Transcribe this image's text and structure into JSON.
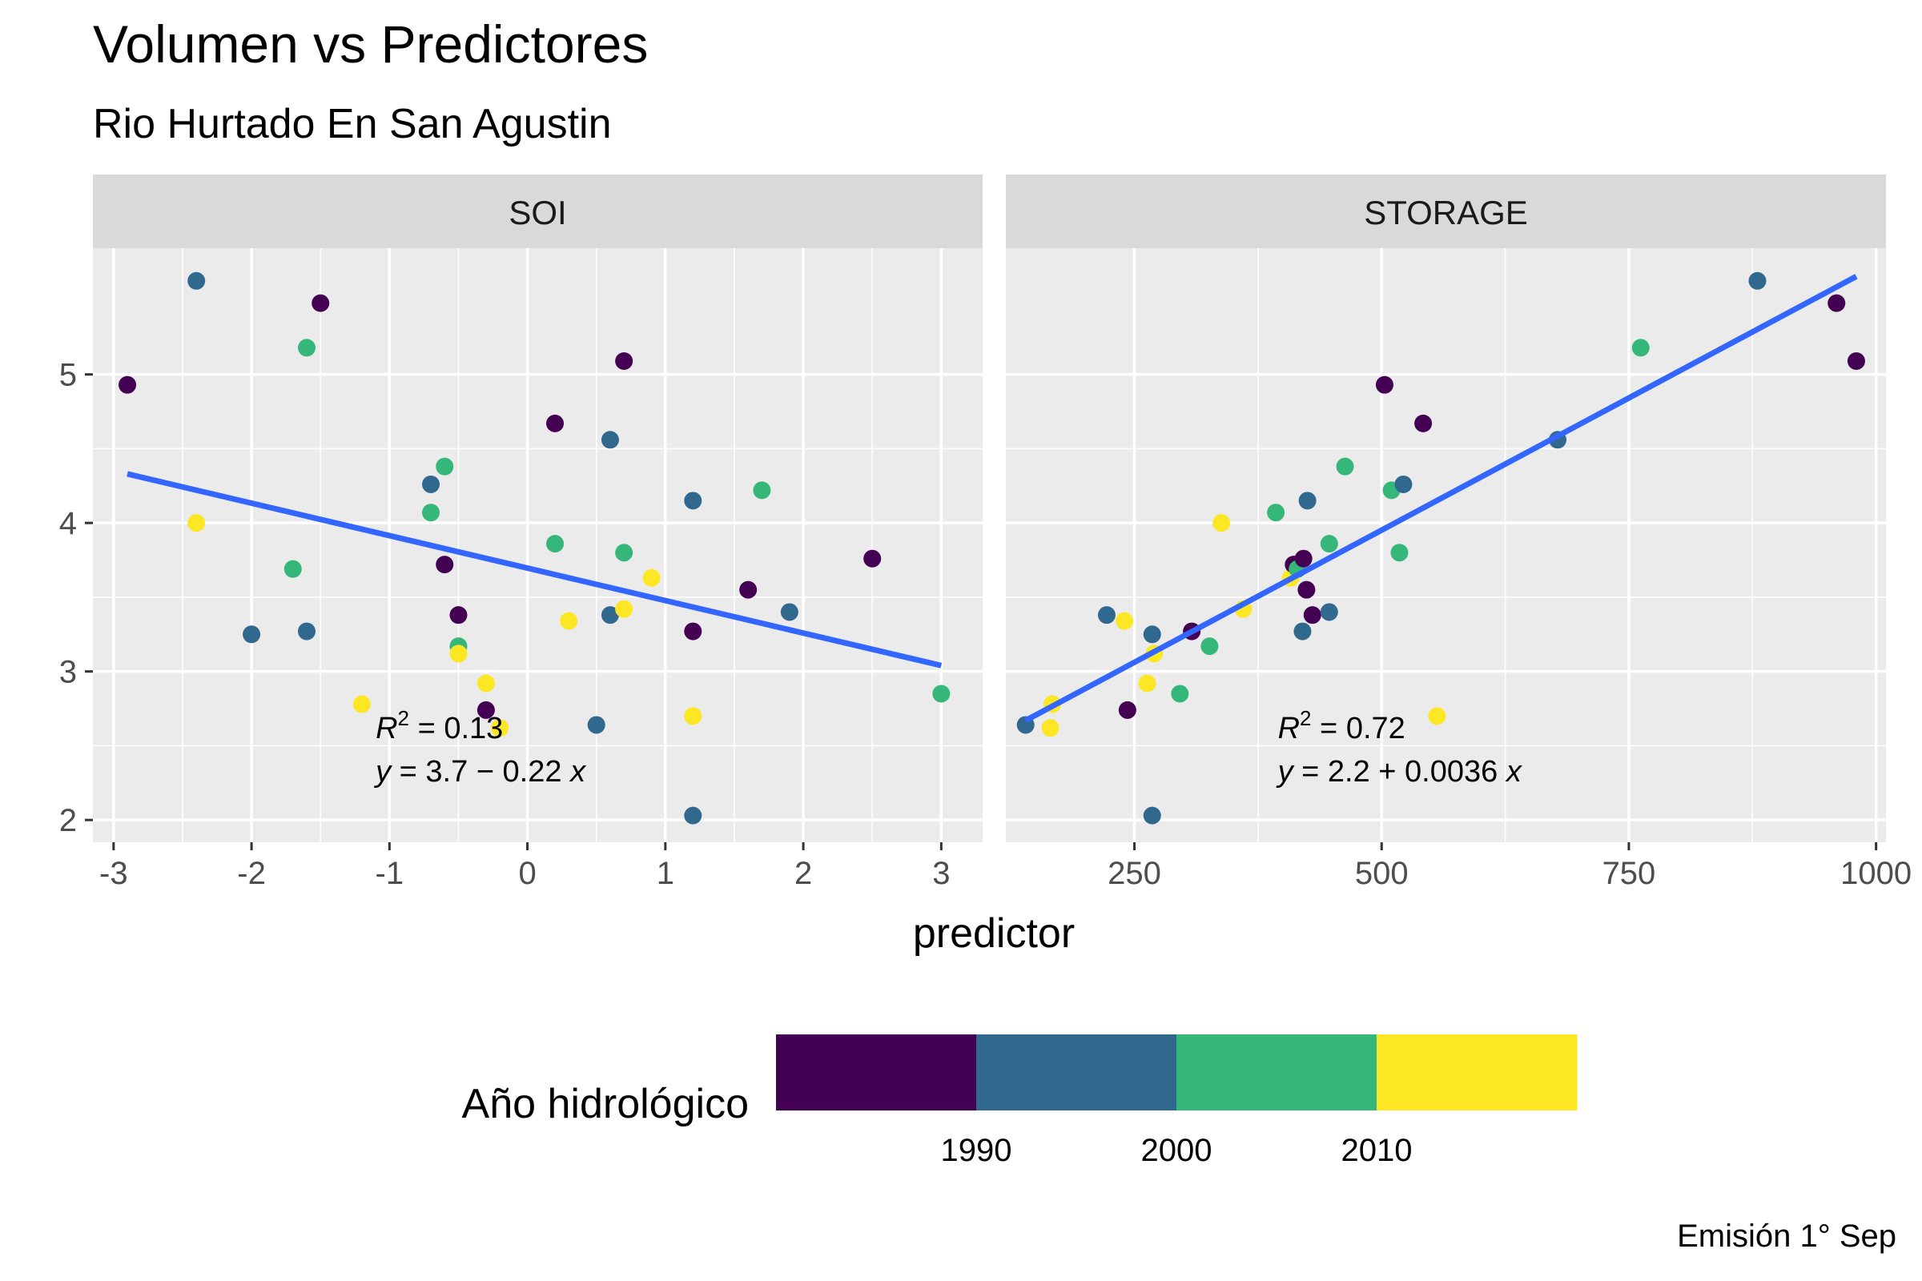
{
  "chart_data": {
    "type": "scatter",
    "title": "Volumen vs Predictores",
    "subtitle": "Rio Hurtado En San Agustin",
    "xlabel": "predictor",
    "ylabel": "",
    "caption": "Emisión 1° Sep",
    "legend": {
      "title": "Año hidrológico",
      "position": "bottom",
      "ticks": [
        "1990",
        "2000",
        "2010"
      ],
      "bins": [
        {
          "label": "<1990",
          "color": "#440154"
        },
        {
          "label": "1990-2000",
          "color": "#31688E"
        },
        {
          "label": "2000-2010",
          "color": "#35B779"
        },
        {
          "label": ">2010",
          "color": "#FDE725"
        }
      ]
    },
    "line_color": "#3366FF",
    "panel_bg": "#EBEBEB",
    "strip_bg": "#D9D9D9",
    "ylim": [
      1.85,
      5.85
    ],
    "yticks": [
      2,
      3,
      4,
      5
    ],
    "panels": [
      {
        "strip": "SOI",
        "xlim": [
          -3.15,
          3.3
        ],
        "xticks": [
          -3,
          -2,
          -1,
          0,
          1,
          2,
          3
        ],
        "xtick_labels": [
          "-3",
          "-2",
          "-1",
          "0",
          "1",
          "2",
          "3"
        ],
        "fit": {
          "x": [
            -2.9,
            3.0
          ],
          "y": [
            4.33,
            3.04
          ]
        },
        "r2_text": "0.13",
        "eq_text": "3.7 − 0.22",
        "eq_at": {
          "x": -1.1,
          "y": 2.55
        },
        "points": [
          {
            "x": -2.9,
            "y": 4.93,
            "c": 0
          },
          {
            "x": -2.4,
            "y": 5.63,
            "c": 1
          },
          {
            "x": -2.4,
            "y": 4.0,
            "c": 3
          },
          {
            "x": -2.0,
            "y": 3.25,
            "c": 1
          },
          {
            "x": -1.7,
            "y": 3.69,
            "c": 2
          },
          {
            "x": -1.6,
            "y": 5.18,
            "c": 2
          },
          {
            "x": -1.6,
            "y": 3.27,
            "c": 1
          },
          {
            "x": -1.5,
            "y": 5.48,
            "c": 0
          },
          {
            "x": -1.2,
            "y": 2.78,
            "c": 3
          },
          {
            "x": -0.7,
            "y": 4.26,
            "c": 1
          },
          {
            "x": -0.7,
            "y": 4.07,
            "c": 2
          },
          {
            "x": -0.6,
            "y": 4.38,
            "c": 2
          },
          {
            "x": -0.6,
            "y": 3.72,
            "c": 0
          },
          {
            "x": -0.5,
            "y": 3.38,
            "c": 0
          },
          {
            "x": -0.5,
            "y": 3.17,
            "c": 2
          },
          {
            "x": -0.5,
            "y": 3.12,
            "c": 3
          },
          {
            "x": -0.3,
            "y": 2.92,
            "c": 3
          },
          {
            "x": -0.3,
            "y": 2.74,
            "c": 0
          },
          {
            "x": -0.2,
            "y": 2.62,
            "c": 3
          },
          {
            "x": 0.2,
            "y": 4.67,
            "c": 0
          },
          {
            "x": 0.2,
            "y": 3.86,
            "c": 2
          },
          {
            "x": 0.3,
            "y": 3.34,
            "c": 3
          },
          {
            "x": 0.5,
            "y": 2.64,
            "c": 1
          },
          {
            "x": 0.6,
            "y": 4.56,
            "c": 1
          },
          {
            "x": 0.6,
            "y": 3.38,
            "c": 1
          },
          {
            "x": 0.7,
            "y": 5.09,
            "c": 0
          },
          {
            "x": 0.7,
            "y": 3.8,
            "c": 2
          },
          {
            "x": 0.7,
            "y": 3.42,
            "c": 3
          },
          {
            "x": 0.9,
            "y": 3.63,
            "c": 3
          },
          {
            "x": 1.2,
            "y": 4.15,
            "c": 1
          },
          {
            "x": 1.2,
            "y": 3.27,
            "c": 0
          },
          {
            "x": 1.2,
            "y": 2.7,
            "c": 3
          },
          {
            "x": 1.2,
            "y": 2.03,
            "c": 1
          },
          {
            "x": 1.6,
            "y": 3.55,
            "c": 0
          },
          {
            "x": 1.7,
            "y": 4.22,
            "c": 2
          },
          {
            "x": 1.9,
            "y": 3.4,
            "c": 1
          },
          {
            "x": 2.5,
            "y": 3.76,
            "c": 0
          },
          {
            "x": 3.0,
            "y": 2.85,
            "c": 2
          }
        ]
      },
      {
        "strip": "STORAGE",
        "xlim": [
          120,
          1010
        ],
        "xticks": [
          250,
          500,
          750,
          1000
        ],
        "xtick_labels": [
          "250",
          "500",
          "750",
          "1000"
        ],
        "fit": {
          "x": [
            140,
            980
          ],
          "y": [
            2.67,
            5.66
          ]
        },
        "r2_text": "0.72",
        "eq_text": "2.2 + 0.0036",
        "eq_at": {
          "x": 395,
          "y": 2.55
        },
        "points": [
          {
            "x": 140,
            "y": 2.64,
            "c": 1
          },
          {
            "x": 167,
            "y": 2.78,
            "c": 3
          },
          {
            "x": 165,
            "y": 2.62,
            "c": 3
          },
          {
            "x": 222,
            "y": 3.38,
            "c": 1
          },
          {
            "x": 240,
            "y": 3.34,
            "c": 3
          },
          {
            "x": 243,
            "y": 2.74,
            "c": 0
          },
          {
            "x": 263,
            "y": 2.92,
            "c": 3
          },
          {
            "x": 268,
            "y": 3.25,
            "c": 1
          },
          {
            "x": 270,
            "y": 3.12,
            "c": 3
          },
          {
            "x": 268,
            "y": 2.03,
            "c": 1
          },
          {
            "x": 296,
            "y": 2.85,
            "c": 2
          },
          {
            "x": 308,
            "y": 3.27,
            "c": 0
          },
          {
            "x": 326,
            "y": 3.17,
            "c": 2
          },
          {
            "x": 338,
            "y": 4.0,
            "c": 3
          },
          {
            "x": 360,
            "y": 3.42,
            "c": 3
          },
          {
            "x": 393,
            "y": 4.07,
            "c": 2
          },
          {
            "x": 408,
            "y": 3.63,
            "c": 3
          },
          {
            "x": 411,
            "y": 3.72,
            "c": 0
          },
          {
            "x": 415,
            "y": 3.69,
            "c": 2
          },
          {
            "x": 421,
            "y": 3.76,
            "c": 0
          },
          {
            "x": 420,
            "y": 3.27,
            "c": 1
          },
          {
            "x": 424,
            "y": 3.55,
            "c": 0
          },
          {
            "x": 425,
            "y": 4.15,
            "c": 1
          },
          {
            "x": 430,
            "y": 3.38,
            "c": 0
          },
          {
            "x": 447,
            "y": 3.86,
            "c": 2
          },
          {
            "x": 447,
            "y": 3.4,
            "c": 1
          },
          {
            "x": 463,
            "y": 4.38,
            "c": 2
          },
          {
            "x": 503,
            "y": 4.93,
            "c": 0
          },
          {
            "x": 510,
            "y": 4.22,
            "c": 2
          },
          {
            "x": 518,
            "y": 3.8,
            "c": 2
          },
          {
            "x": 522,
            "y": 4.26,
            "c": 1
          },
          {
            "x": 542,
            "y": 4.67,
            "c": 0
          },
          {
            "x": 556,
            "y": 2.7,
            "c": 3
          },
          {
            "x": 678,
            "y": 4.56,
            "c": 1
          },
          {
            "x": 762,
            "y": 5.18,
            "c": 2
          },
          {
            "x": 880,
            "y": 5.63,
            "c": 1
          },
          {
            "x": 960,
            "y": 5.48,
            "c": 0
          },
          {
            "x": 980,
            "y": 5.09,
            "c": 0
          }
        ]
      }
    ]
  }
}
